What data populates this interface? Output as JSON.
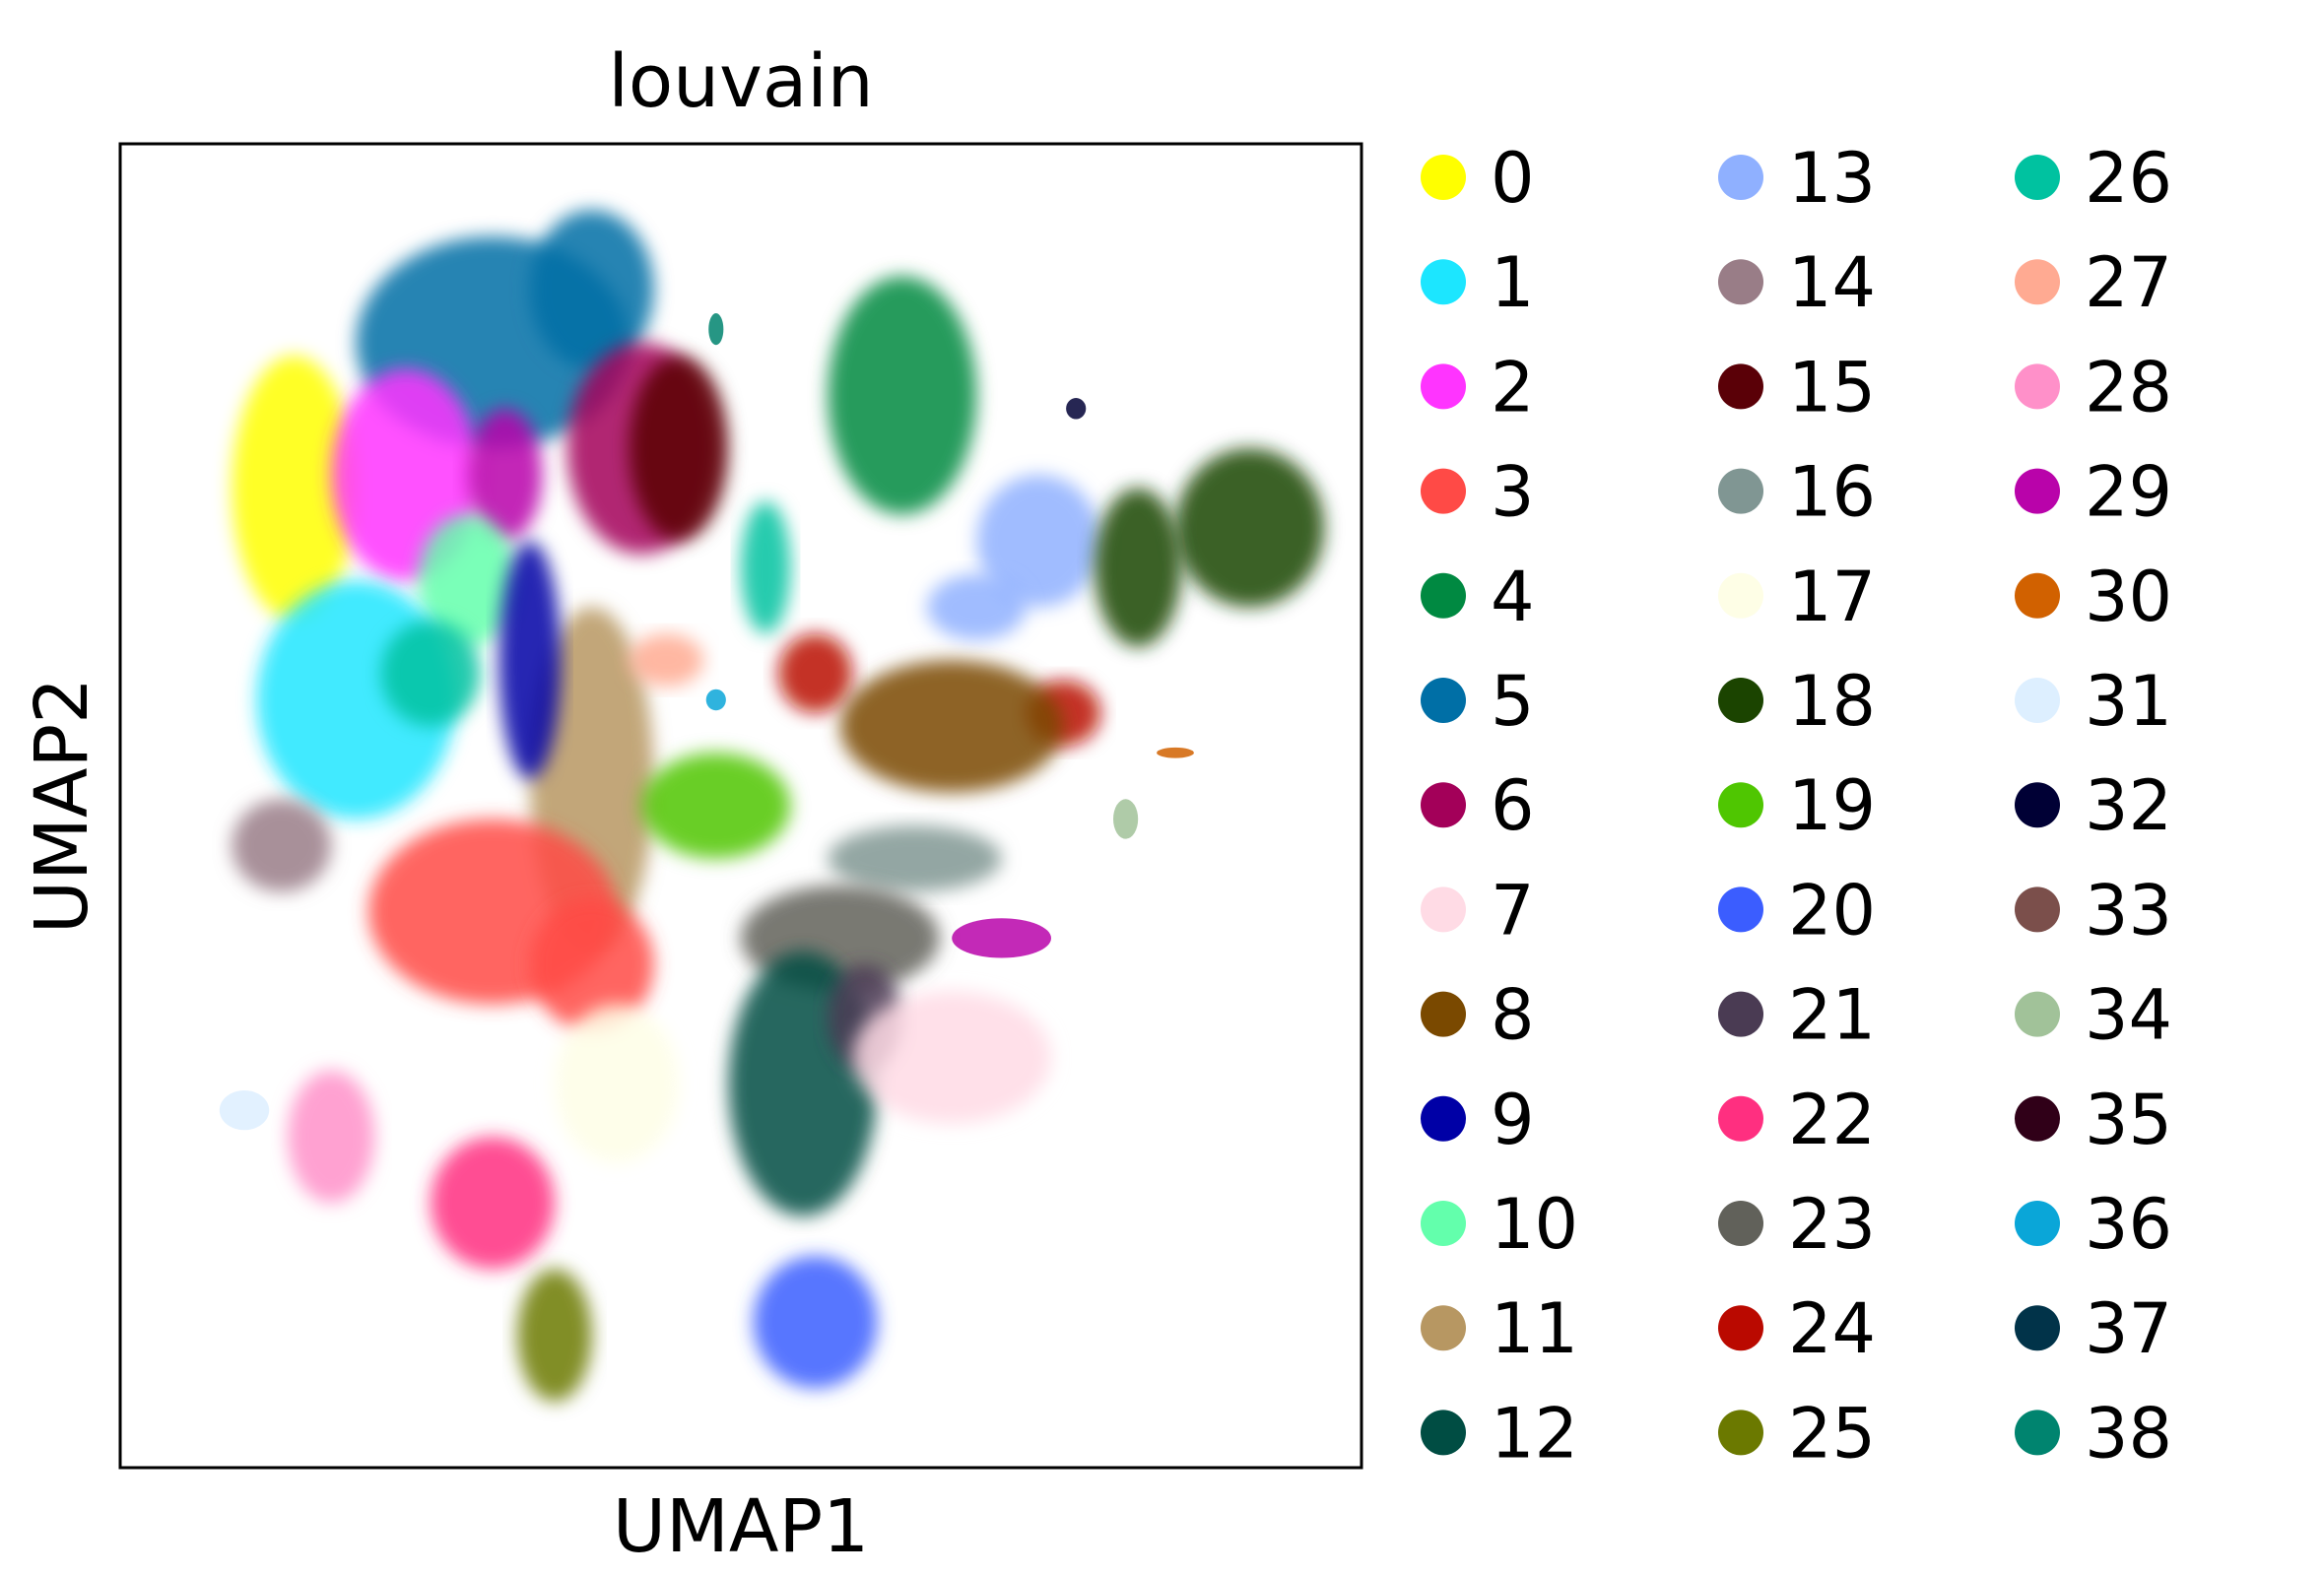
{
  "chart_data": {
    "type": "scatter",
    "title": "louvain",
    "xlabel": "UMAP1",
    "ylabel": "UMAP2",
    "xlim": [
      0,
      100
    ],
    "ylim": [
      0,
      100
    ],
    "grid": false,
    "ticks": false,
    "legend_position": "right",
    "legend_columns": 3,
    "categories": [
      {
        "name": "0",
        "color": "#ffff00"
      },
      {
        "name": "1",
        "color": "#1ce6ff"
      },
      {
        "name": "2",
        "color": "#ff34ff"
      },
      {
        "name": "3",
        "color": "#ff4a46"
      },
      {
        "name": "4",
        "color": "#008941"
      },
      {
        "name": "5",
        "color": "#006fa6"
      },
      {
        "name": "6",
        "color": "#a30059"
      },
      {
        "name": "7",
        "color": "#ffdbe5"
      },
      {
        "name": "8",
        "color": "#7a4900"
      },
      {
        "name": "9",
        "color": "#0000a6"
      },
      {
        "name": "10",
        "color": "#63ffac"
      },
      {
        "name": "11",
        "color": "#b79762"
      },
      {
        "name": "12",
        "color": "#004d43"
      },
      {
        "name": "13",
        "color": "#8fb0ff"
      },
      {
        "name": "14",
        "color": "#997d87"
      },
      {
        "name": "15",
        "color": "#5a0007"
      },
      {
        "name": "16",
        "color": "#809693"
      },
      {
        "name": "17",
        "color": "#fefee6"
      },
      {
        "name": "18",
        "color": "#1b4400"
      },
      {
        "name": "19",
        "color": "#4fc601"
      },
      {
        "name": "20",
        "color": "#3b5dff"
      },
      {
        "name": "21",
        "color": "#4a3b53"
      },
      {
        "name": "22",
        "color": "#ff2f80"
      },
      {
        "name": "23",
        "color": "#61615a"
      },
      {
        "name": "24",
        "color": "#ba0900"
      },
      {
        "name": "25",
        "color": "#6b7900"
      },
      {
        "name": "26",
        "color": "#00c2a0"
      },
      {
        "name": "27",
        "color": "#ffaa92"
      },
      {
        "name": "28",
        "color": "#ff90c9"
      },
      {
        "name": "29",
        "color": "#b903aa"
      },
      {
        "name": "30",
        "color": "#d16100"
      },
      {
        "name": "31",
        "color": "#ddefff"
      },
      {
        "name": "32",
        "color": "#000035"
      },
      {
        "name": "33",
        "color": "#7b4f4b"
      },
      {
        "name": "34",
        "color": "#a1c299"
      },
      {
        "name": "35",
        "color": "#300018"
      },
      {
        "name": "36",
        "color": "#0aa6d8"
      },
      {
        "name": "37",
        "color": "#013349"
      },
      {
        "name": "38",
        "color": "#00846f"
      }
    ],
    "clusters": [
      {
        "id": 5,
        "x": 30,
        "y": 85,
        "rx": 11,
        "ry": 8
      },
      {
        "id": 5,
        "x": 38,
        "y": 89,
        "rx": 5,
        "ry": 6
      },
      {
        "id": 0,
        "x": 14,
        "y": 74,
        "rx": 5,
        "ry": 10
      },
      {
        "id": 2,
        "x": 23,
        "y": 75,
        "rx": 6,
        "ry": 8
      },
      {
        "id": 29,
        "x": 31,
        "y": 75,
        "rx": 3,
        "ry": 5
      },
      {
        "id": 10,
        "x": 28,
        "y": 67,
        "rx": 4,
        "ry": 5
      },
      {
        "id": 1,
        "x": 19,
        "y": 58,
        "rx": 8,
        "ry": 9
      },
      {
        "id": 26,
        "x": 25,
        "y": 60,
        "rx": 4,
        "ry": 4
      },
      {
        "id": 6,
        "x": 42,
        "y": 77,
        "rx": 6,
        "ry": 8
      },
      {
        "id": 15,
        "x": 45,
        "y": 77,
        "rx": 4,
        "ry": 7
      },
      {
        "id": 11,
        "x": 38,
        "y": 52,
        "rx": 5,
        "ry": 13
      },
      {
        "id": 9,
        "x": 33,
        "y": 61,
        "rx": 2.5,
        "ry": 9
      },
      {
        "id": 3,
        "x": 30,
        "y": 42,
        "rx": 10,
        "ry": 7
      },
      {
        "id": 3,
        "x": 38,
        "y": 38,
        "rx": 5,
        "ry": 5
      },
      {
        "id": 14,
        "x": 13,
        "y": 47,
        "rx": 4,
        "ry": 3.5
      },
      {
        "id": 4,
        "x": 63,
        "y": 81,
        "rx": 6,
        "ry": 9
      },
      {
        "id": 13,
        "x": 74,
        "y": 70,
        "rx": 5,
        "ry": 5
      },
      {
        "id": 13,
        "x": 69,
        "y": 65,
        "rx": 4,
        "ry": 2.5
      },
      {
        "id": 26,
        "x": 52,
        "y": 68,
        "rx": 2,
        "ry": 5
      },
      {
        "id": 27,
        "x": 44,
        "y": 61,
        "rx": 3,
        "ry": 2
      },
      {
        "id": 18,
        "x": 91,
        "y": 71,
        "rx": 6,
        "ry": 6
      },
      {
        "id": 18,
        "x": 82,
        "y": 68,
        "rx": 3.5,
        "ry": 6
      },
      {
        "id": 24,
        "x": 56,
        "y": 60,
        "rx": 3,
        "ry": 3
      },
      {
        "id": 24,
        "x": 76,
        "y": 57,
        "rx": 3,
        "ry": 2.5
      },
      {
        "id": 8,
        "x": 67,
        "y": 56,
        "rx": 9,
        "ry": 5
      },
      {
        "id": 19,
        "x": 48,
        "y": 50,
        "rx": 6,
        "ry": 4
      },
      {
        "id": 16,
        "x": 64,
        "y": 46,
        "rx": 7,
        "ry": 2.5
      },
      {
        "id": 29,
        "x": 71,
        "y": 40,
        "rx": 4,
        "ry": 1.5
      },
      {
        "id": 23,
        "x": 58,
        "y": 40,
        "rx": 8,
        "ry": 4
      },
      {
        "id": 12,
        "x": 55,
        "y": 29,
        "rx": 6,
        "ry": 10
      },
      {
        "id": 21,
        "x": 60,
        "y": 34,
        "rx": 3,
        "ry": 4
      },
      {
        "id": 7,
        "x": 67,
        "y": 31,
        "rx": 8,
        "ry": 5
      },
      {
        "id": 17,
        "x": 40,
        "y": 29,
        "rx": 5,
        "ry": 6
      },
      {
        "id": 28,
        "x": 17,
        "y": 25,
        "rx": 3.5,
        "ry": 5
      },
      {
        "id": 22,
        "x": 30,
        "y": 20,
        "rx": 5,
        "ry": 5
      },
      {
        "id": 25,
        "x": 35,
        "y": 10,
        "rx": 3,
        "ry": 5
      },
      {
        "id": 20,
        "x": 56,
        "y": 11,
        "rx": 5,
        "ry": 5
      },
      {
        "id": 31,
        "x": 10,
        "y": 27,
        "rx": 2,
        "ry": 1.5
      },
      {
        "id": 32,
        "x": 77,
        "y": 80,
        "rx": 0.8,
        "ry": 0.8
      },
      {
        "id": 30,
        "x": 85,
        "y": 54,
        "rx": 1.5,
        "ry": 0.4
      },
      {
        "id": 34,
        "x": 81,
        "y": 49,
        "rx": 1,
        "ry": 1.5
      },
      {
        "id": 36,
        "x": 48,
        "y": 58,
        "rx": 0.8,
        "ry": 0.8
      },
      {
        "id": 38,
        "x": 48,
        "y": 86,
        "rx": 0.6,
        "ry": 1.2
      }
    ]
  }
}
